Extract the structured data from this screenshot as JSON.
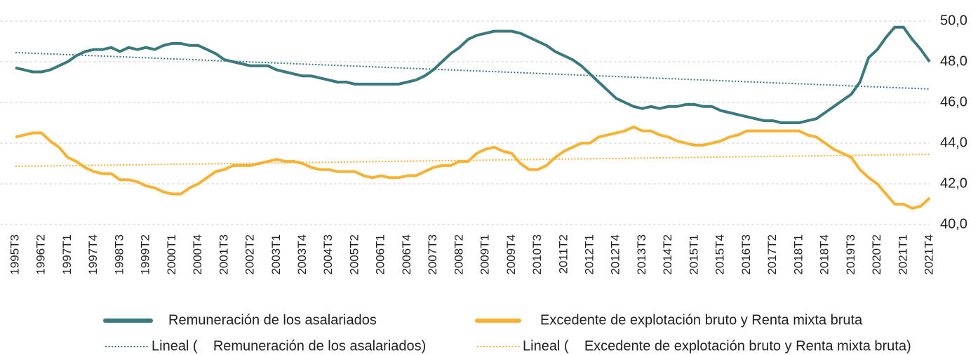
{
  "chart_data": {
    "type": "line",
    "categories": [
      "1995T3",
      null,
      null,
      "1996T2",
      null,
      null,
      "1997T1",
      null,
      null,
      "1997T4",
      null,
      null,
      "1998T3",
      null,
      null,
      "1999T2",
      null,
      null,
      "2000T1",
      null,
      null,
      "2000T4",
      null,
      null,
      "2001T3",
      null,
      null,
      "2002T2",
      null,
      null,
      "2003T1",
      null,
      null,
      "2003T4",
      null,
      null,
      "2004T3",
      null,
      null,
      "2005T2",
      null,
      null,
      "2006T1",
      null,
      null,
      "2006T4",
      null,
      null,
      "2007T3",
      null,
      null,
      "2008T2",
      null,
      null,
      "2009T1",
      null,
      null,
      "2009T4",
      null,
      null,
      "2010T3",
      null,
      null,
      "2011T2",
      null,
      null,
      "2012T1",
      null,
      null,
      "2012T4",
      null,
      null,
      "2013T3",
      null,
      null,
      "2014T2",
      null,
      null,
      "2015T1",
      null,
      null,
      "2015T4",
      null,
      null,
      "2016T3",
      null,
      null,
      "2017T2",
      null,
      null,
      "2018T1",
      null,
      null,
      "2018T4",
      null,
      null,
      "2019T3",
      null,
      null,
      "2020T2",
      null,
      null,
      "2021T1",
      null,
      null,
      "2021T4"
    ],
    "series": [
      {
        "name": "Remuneración de los asalariados",
        "color": "#3a7a7e",
        "values": [
          47.7,
          47.6,
          47.5,
          47.5,
          47.6,
          47.8,
          48.0,
          48.3,
          48.5,
          48.6,
          48.6,
          48.7,
          48.5,
          48.7,
          48.6,
          48.7,
          48.6,
          48.8,
          48.9,
          48.9,
          48.8,
          48.8,
          48.6,
          48.4,
          48.1,
          48.0,
          47.9,
          47.8,
          47.8,
          47.8,
          47.6,
          47.5,
          47.4,
          47.3,
          47.3,
          47.2,
          47.1,
          47.0,
          47.0,
          46.9,
          46.9,
          46.9,
          46.9,
          46.9,
          46.9,
          47.0,
          47.1,
          47.3,
          47.6,
          48.0,
          48.4,
          48.7,
          49.1,
          49.3,
          49.4,
          49.5,
          49.5,
          49.5,
          49.4,
          49.2,
          49.0,
          48.8,
          48.5,
          48.3,
          48.1,
          47.8,
          47.4,
          47.0,
          46.6,
          46.2,
          46.0,
          45.8,
          45.7,
          45.8,
          45.7,
          45.8,
          45.8,
          45.9,
          45.9,
          45.8,
          45.8,
          45.6,
          45.5,
          45.4,
          45.3,
          45.2,
          45.1,
          45.1,
          45.0,
          45.0,
          45.0,
          45.1,
          45.2,
          45.5,
          45.8,
          46.1,
          46.4,
          47.0,
          48.2,
          48.6,
          49.2,
          49.7,
          49.7,
          49.1,
          48.6,
          48.0
        ]
      },
      {
        "name": "Excedente de explotación bruto y Renta mixta bruta",
        "color": "#f7b234",
        "values": [
          44.3,
          44.4,
          44.5,
          44.5,
          44.1,
          43.8,
          43.3,
          43.1,
          42.8,
          42.6,
          42.5,
          42.5,
          42.2,
          42.2,
          42.1,
          41.9,
          41.8,
          41.6,
          41.5,
          41.5,
          41.8,
          42.0,
          42.3,
          42.6,
          42.7,
          42.9,
          42.9,
          42.9,
          43.0,
          43.1,
          43.2,
          43.1,
          43.1,
          43.0,
          42.8,
          42.7,
          42.7,
          42.6,
          42.6,
          42.6,
          42.4,
          42.3,
          42.4,
          42.3,
          42.3,
          42.4,
          42.4,
          42.6,
          42.8,
          42.9,
          42.9,
          43.1,
          43.1,
          43.5,
          43.7,
          43.8,
          43.6,
          43.5,
          43.0,
          42.7,
          42.7,
          42.9,
          43.3,
          43.6,
          43.8,
          44.0,
          44.0,
          44.3,
          44.4,
          44.5,
          44.6,
          44.8,
          44.6,
          44.6,
          44.4,
          44.3,
          44.1,
          44.0,
          43.9,
          43.9,
          44.0,
          44.1,
          44.3,
          44.4,
          44.6,
          44.6,
          44.6,
          44.6,
          44.6,
          44.6,
          44.6,
          44.4,
          44.3,
          44.0,
          43.7,
          43.5,
          43.3,
          42.7,
          42.3,
          42.0,
          41.5,
          41.0,
          41.0,
          40.8,
          40.9,
          41.3
        ]
      }
    ],
    "trendlines": [
      {
        "name": "Lineal (    Remuneración de los asalariados)",
        "color": "#3a7a7e",
        "values": [
          48.45,
          46.66
        ]
      },
      {
        "name": "Lineal (    Excedente de explotación bruto y Renta mixta bruta)",
        "color": "#f7b234",
        "values": [
          42.86,
          43.45
        ]
      }
    ],
    "ylim": [
      40,
      50
    ],
    "yticks": [
      {
        "value": 40,
        "label": "40,0"
      },
      {
        "value": 42,
        "label": "42,0"
      },
      {
        "value": 44,
        "label": "44,0"
      },
      {
        "value": 46,
        "label": "46,0"
      },
      {
        "value": 48,
        "label": "48,0"
      },
      {
        "value": 50,
        "label": "50,0"
      }
    ],
    "grid": true
  }
}
